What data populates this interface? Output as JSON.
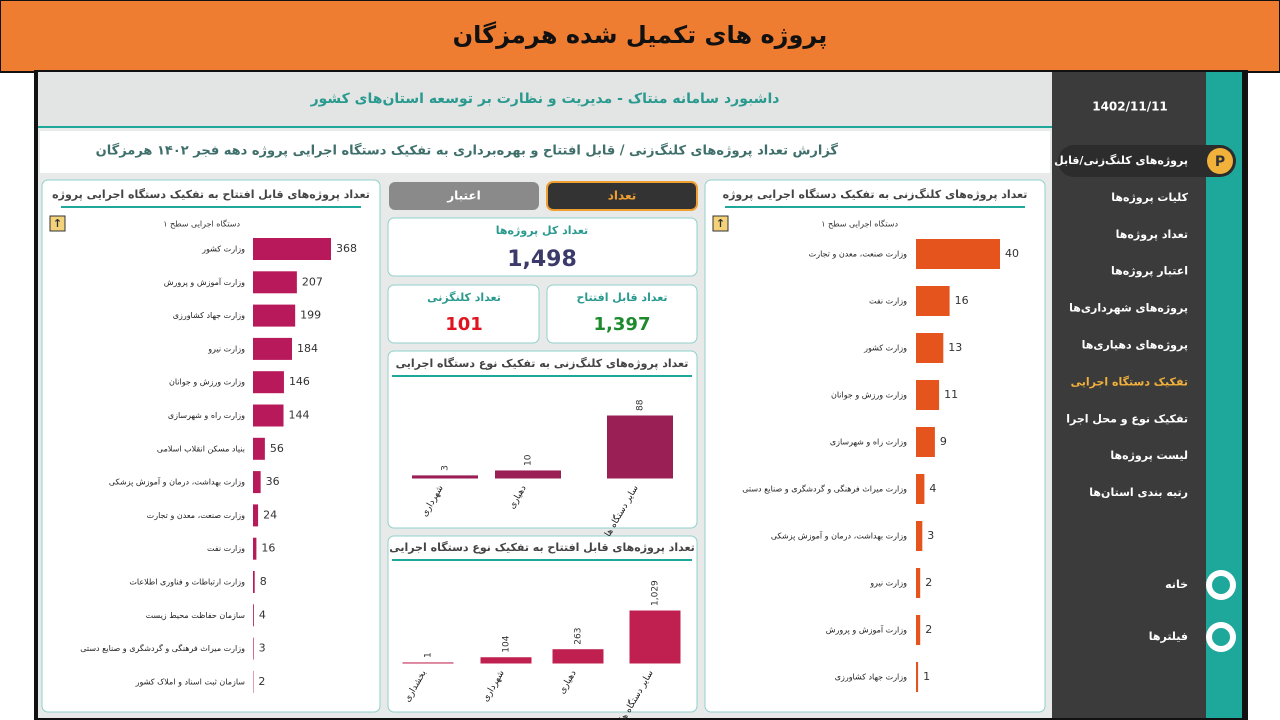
{
  "banner": {
    "title": "پروژه های تکمیل شده هرمزگان"
  },
  "header": {
    "title": "داشبورد سامانه منتاک - مدیریت و نظارت بر توسعه استان‌های کشور",
    "subtitle": "گزارش تعداد پروژه‌های کلنگ‌زنی / قابل افتتاح و بهره‌برداری به تفکیک دستگاه اجرایی پروژه دهه فجر ۱۴۰۲ هرمزگان"
  },
  "sidebar": {
    "date": "1402/11/11",
    "menu": [
      "پروژه‌های کلنگ‌زنی/قابل افتتاح",
      "کلیات پروژه‌ها",
      "تعداد پروژه‌ها",
      "اعتبار پروژه‌ها",
      "پروژه‌های شهرداری‌ها",
      "پروژه‌های دهیاری‌ها",
      "تفکیک دستگاه اجرایی",
      "تفکیک نوع و محل اجرا",
      "لیست پروژه‌ها",
      "رتبه بندی استان‌ها"
    ],
    "bottom_menu": [
      "خانه",
      "فیلترها"
    ]
  },
  "tabs": [
    "تعداد",
    "اعتبار"
  ],
  "kpis": [
    {
      "label": "تعداد کل پروژه‌ها",
      "value": "1,498",
      "color": "#3b3a6b"
    },
    {
      "label": "تعداد قابل افتتاح",
      "value": "1,397",
      "color": "#1e8a2e"
    },
    {
      "label": "تعداد کلنگزنی",
      "value": "101",
      "color": "#e0141e"
    }
  ],
  "chart_data": [
    {
      "type": "bar",
      "horizontal": true,
      "title": "تعداد پروژه‌های قابل افتتاح به تفکیک دستگاه اجرایی پروژه",
      "level_label": "دستگاه اجرایی سطح ۱",
      "color": "#b8195a",
      "categories": [
        "وزارت کشور",
        "وزارت آموزش و پرورش",
        "وزارت جهاد کشاورزی",
        "وزارت نیرو",
        "وزارت ورزش و جوانان",
        "وزارت راه و شهرسازی",
        "بنیاد مسکن انقلاب اسلامی",
        "وزارت بهداشت، درمان و آموزش پزشکی",
        "وزارت صنعت، معدن و تجارت",
        "وزارت نفت",
        "وزارت ارتباطات و فناوری اطلاعات",
        "سازمان حفاظت محیط زیست",
        "وزارت میراث فرهنگی و گردشگری و صنایع دستی",
        "سازمان ثبت اسناد و املاک کشور"
      ],
      "values": [
        368,
        207,
        199,
        184,
        146,
        144,
        56,
        36,
        24,
        16,
        8,
        4,
        3,
        2
      ]
    },
    {
      "type": "bar",
      "horizontal": true,
      "title": "تعداد پروژه‌های کلنگ‌زنی به تفکیک دستگاه اجرایی پروژه",
      "level_label": "دستگاه اجرایی سطح ۱",
      "color": "#e4541c",
      "categories": [
        "وزارت صنعت، معدن و تجارت",
        "وزارت نفت",
        "وزارت کشور",
        "وزارت ورزش و جوانان",
        "وزارت راه و شهرسازی",
        "وزارت میراث فرهنگی و گردشگری و صنایع دستی",
        "وزارت بهداشت، درمان و آموزش پزشکی",
        "وزارت نیرو",
        "وزارت آموزش و پرورش",
        "وزارت جهاد کشاورزی"
      ],
      "values": [
        40,
        16,
        13,
        11,
        9,
        4,
        3,
        2,
        2,
        1
      ]
    },
    {
      "type": "bar",
      "horizontal": false,
      "title": "تعداد پروژه‌های کلنگ‌زنی به تفکیک نوع دستگاه اجرایی",
      "color": "#9a1f55",
      "categories": [
        "شهرداری",
        "دهیاری",
        "سایر دستگاه ها"
      ],
      "values": [
        3,
        10,
        88
      ]
    },
    {
      "type": "bar",
      "horizontal": false,
      "title": "تعداد پروژه‌های قابل افتتاح به تفکیک نوع دستگاه اجرایی",
      "color": "#c0204f",
      "categories": [
        "بخشداری",
        "شهرداری",
        "دهیاری",
        "سایر دستگاه ها"
      ],
      "values": [
        1,
        104,
        263,
        1029
      ],
      "value_labels": [
        "1",
        "104",
        "263",
        "1,029"
      ]
    }
  ]
}
